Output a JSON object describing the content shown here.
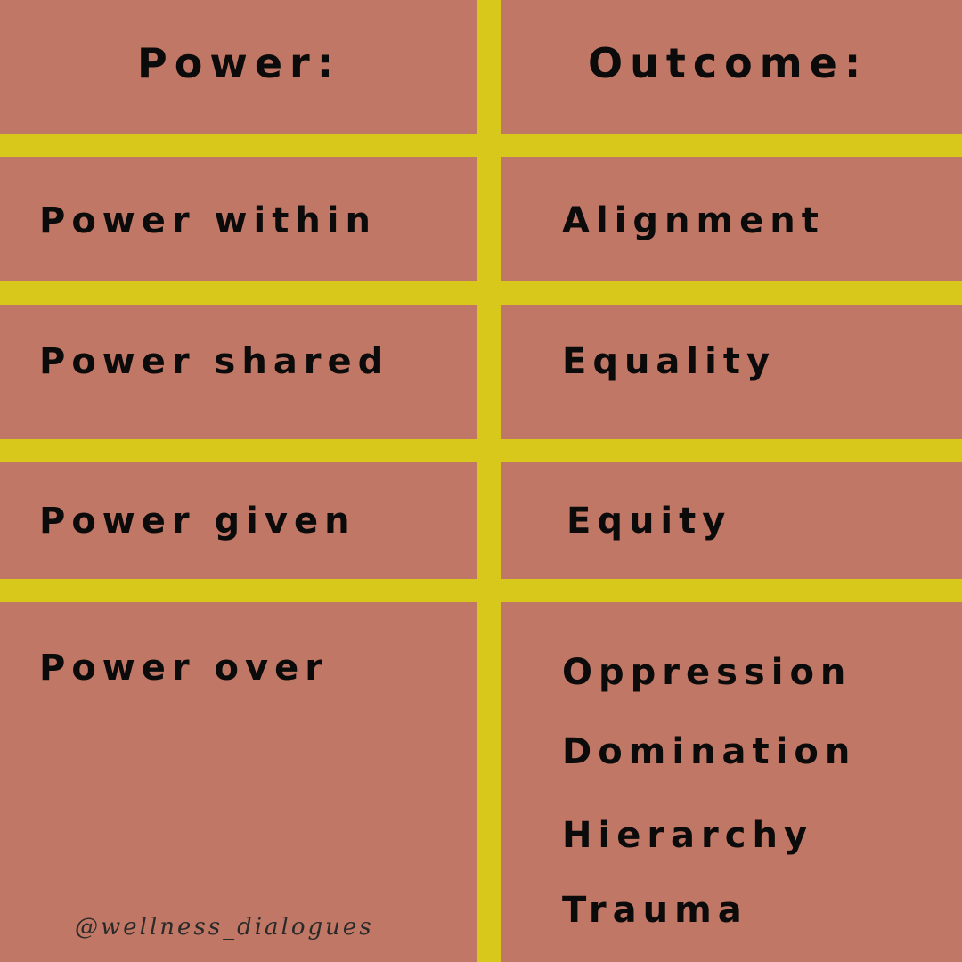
{
  "table": {
    "headers": {
      "power": "Power:",
      "outcome": "Outcome:"
    },
    "rows": [
      {
        "power": "Power within",
        "outcomes": [
          "Alignment"
        ]
      },
      {
        "power": "Power shared",
        "outcomes": [
          "Equality"
        ]
      },
      {
        "power": "Power given",
        "outcomes": [
          "Equity"
        ]
      },
      {
        "power": "Power over",
        "outcomes": [
          "Oppression",
          "Domination",
          "Hierarchy",
          "Trauma"
        ]
      }
    ]
  },
  "watermark": "@wellness_dialogues",
  "colors": {
    "background": "#c17765",
    "grid_lines": "#d8c81c",
    "text": "#0b0b0b"
  }
}
